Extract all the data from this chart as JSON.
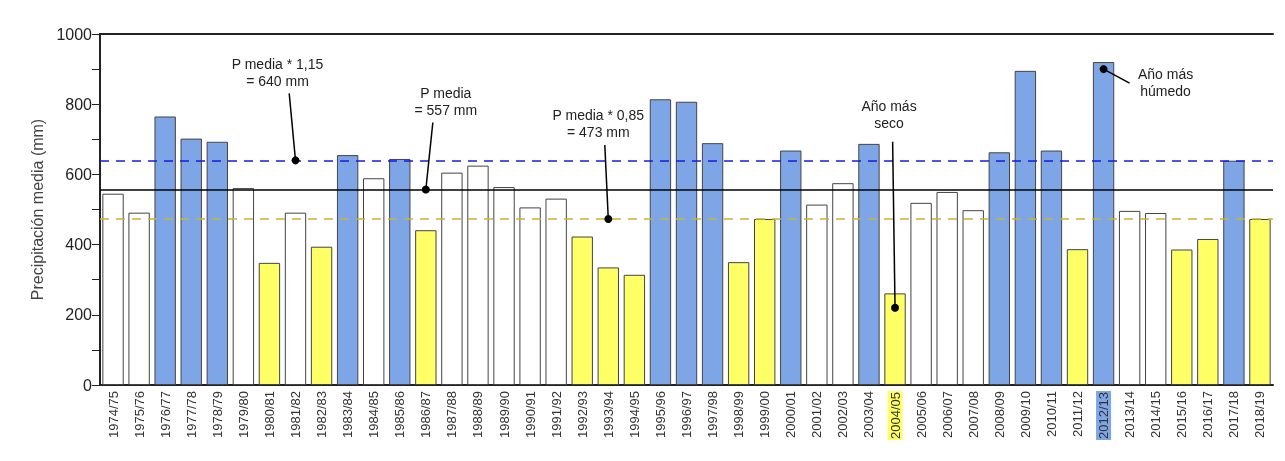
{
  "chart_data": {
    "type": "bar",
    "ylabel": "Precipitación media (mm)",
    "categories": [
      "1974/75",
      "1975/76",
      "1976/77",
      "1977/78",
      "1978/79",
      "1979/80",
      "1980/81",
      "1981/82",
      "1982/83",
      "1983/84",
      "1984/85",
      "1985/86",
      "1986/87",
      "1987/88",
      "1988/89",
      "1989/90",
      "1990/91",
      "1991/92",
      "1992/93",
      "1993/94",
      "1994/95",
      "1995/96",
      "1996/97",
      "1997/98",
      "1998/99",
      "1999/00",
      "2000/01",
      "2001/02",
      "2002/03",
      "2003/04",
      "2004/05",
      "2005/06",
      "2006/07",
      "2007/08",
      "2008/09",
      "2009/10",
      "2010/11",
      "2011/12",
      "2012/13",
      "2013/14",
      "2014/15",
      "2015/16",
      "2016/17",
      "2017/18",
      "2018/19"
    ],
    "values": [
      545,
      491,
      765,
      702,
      693,
      561,
      348,
      491,
      394,
      655,
      589,
      644,
      441,
      605,
      625,
      564,
      506,
      531,
      423,
      335,
      314,
      814,
      807,
      689,
      350,
      473,
      668,
      514,
      575,
      687,
      261,
      519,
      550,
      498,
      663,
      895,
      668,
      387,
      920,
      496,
      490,
      386,
      416,
      639,
      473
    ],
    "colors": [
      "#ffffff",
      "#ffffff",
      "#7ea6e6",
      "#7ea6e6",
      "#7ea6e6",
      "#ffffff",
      "#ffff66",
      "#ffffff",
      "#ffff66",
      "#7ea6e6",
      "#ffffff",
      "#7ea6e6",
      "#ffff66",
      "#ffffff",
      "#ffffff",
      "#ffffff",
      "#ffffff",
      "#ffffff",
      "#ffff66",
      "#ffff66",
      "#ffff66",
      "#7ea6e6",
      "#7ea6e6",
      "#7ea6e6",
      "#ffff66",
      "#ffff66",
      "#7ea6e6",
      "#ffffff",
      "#ffffff",
      "#7ea6e6",
      "#ffff66",
      "#ffffff",
      "#ffffff",
      "#ffffff",
      "#7ea6e6",
      "#7ea6e6",
      "#7ea6e6",
      "#ffff66",
      "#7ea6e6",
      "#ffffff",
      "#ffffff",
      "#ffff66",
      "#ffff66",
      "#7ea6e6",
      "#ffff66"
    ],
    "ylim": [
      0,
      1000
    ],
    "yticks": [
      0,
      {
        "value": 100,
        "label": null
      },
      200,
      {
        "value": 300,
        "label": null
      },
      400,
      {
        "value": 500,
        "label": null
      },
      600,
      {
        "value": 700,
        "label": null
      },
      800,
      {
        "value": 900,
        "label": null
      },
      1000
    ],
    "ref_lines": [
      {
        "axis": "y",
        "value": 640,
        "label": "P media * 1,15\n= 640 mm",
        "color": "#1a1ae0",
        "line_style": "dashed"
      },
      {
        "axis": "y",
        "value": 557,
        "label": "P media\n= 557 mm",
        "color": "#000000",
        "line_style": "solid"
      },
      {
        "axis": "y",
        "value": 473,
        "label": "P media * 0,85\n= 473 mm",
        "color": "#c8b43c",
        "line_style": "dashed"
      }
    ],
    "annotations": [
      {
        "text": "Año más\nseco",
        "x": "2004/05",
        "y": 220
      },
      {
        "text": "Año más\nhúmedo",
        "x": "2012/13",
        "y": 900
      }
    ],
    "grid": false
  }
}
